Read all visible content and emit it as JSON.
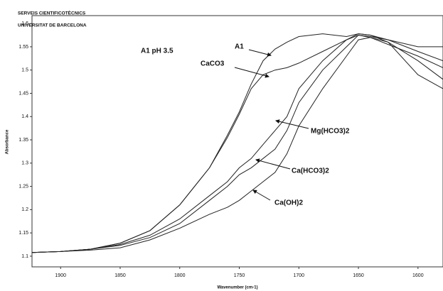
{
  "chart_data": {
    "type": "line",
    "header": [
      "SERVEIS CIENTIFICOTÈCNICS",
      "UNIVERSITAT DE BARCELONA"
    ],
    "title": "A1 pH 3.5",
    "x_label": "Wavenumber (cm-1)",
    "y_label": "Absorbance",
    "x": [
      1924,
      1900,
      1875,
      1850,
      1825,
      1800,
      1775,
      1760,
      1750,
      1740,
      1730,
      1720,
      1710,
      1700,
      1680,
      1660,
      1650,
      1640,
      1625,
      1600,
      1579
    ],
    "series": [
      {
        "name": "A1",
        "color": "#222222",
        "values": [
          1.108,
          1.11,
          1.115,
          1.128,
          1.155,
          1.21,
          1.29,
          1.36,
          1.41,
          1.47,
          1.52,
          1.545,
          1.56,
          1.572,
          1.578,
          1.572,
          1.578,
          1.575,
          1.565,
          1.54,
          1.52
        ]
      },
      {
        "name": "CaCO3",
        "color": "#222222",
        "values": [
          1.108,
          1.11,
          1.115,
          1.128,
          1.155,
          1.21,
          1.29,
          1.355,
          1.405,
          1.46,
          1.49,
          1.5,
          1.505,
          1.515,
          1.54,
          1.565,
          1.575,
          1.57,
          1.555,
          1.53,
          1.505
        ]
      },
      {
        "name": "Mg(HCO3)2",
        "color": "#222222",
        "values": [
          1.108,
          1.11,
          1.115,
          1.125,
          1.145,
          1.18,
          1.23,
          1.26,
          1.29,
          1.31,
          1.34,
          1.37,
          1.4,
          1.46,
          1.52,
          1.565,
          1.578,
          1.575,
          1.56,
          1.52,
          1.48
        ]
      },
      {
        "name": "Ca(HCO3)2",
        "color": "#222222",
        "values": [
          1.108,
          1.11,
          1.115,
          1.123,
          1.14,
          1.17,
          1.22,
          1.25,
          1.275,
          1.29,
          1.31,
          1.33,
          1.37,
          1.43,
          1.5,
          1.55,
          1.575,
          1.572,
          1.565,
          1.55,
          1.55
        ]
      },
      {
        "name": "Ca(OH)2",
        "color": "#222222",
        "values": [
          1.108,
          1.11,
          1.113,
          1.118,
          1.135,
          1.16,
          1.19,
          1.205,
          1.22,
          1.24,
          1.26,
          1.28,
          1.32,
          1.38,
          1.46,
          1.53,
          1.565,
          1.57,
          1.56,
          1.49,
          1.46
        ]
      }
    ],
    "xlim": [
      1924,
      1579
    ],
    "ylim": [
      1.077,
      1.617
    ],
    "xticks": [
      1900,
      1850,
      1800,
      1750,
      1700,
      1650,
      1600
    ],
    "yticks": [
      1.1,
      1.15,
      1.2,
      1.25,
      1.3,
      1.35,
      1.4,
      1.45,
      1.5,
      1.55,
      1.6
    ]
  }
}
